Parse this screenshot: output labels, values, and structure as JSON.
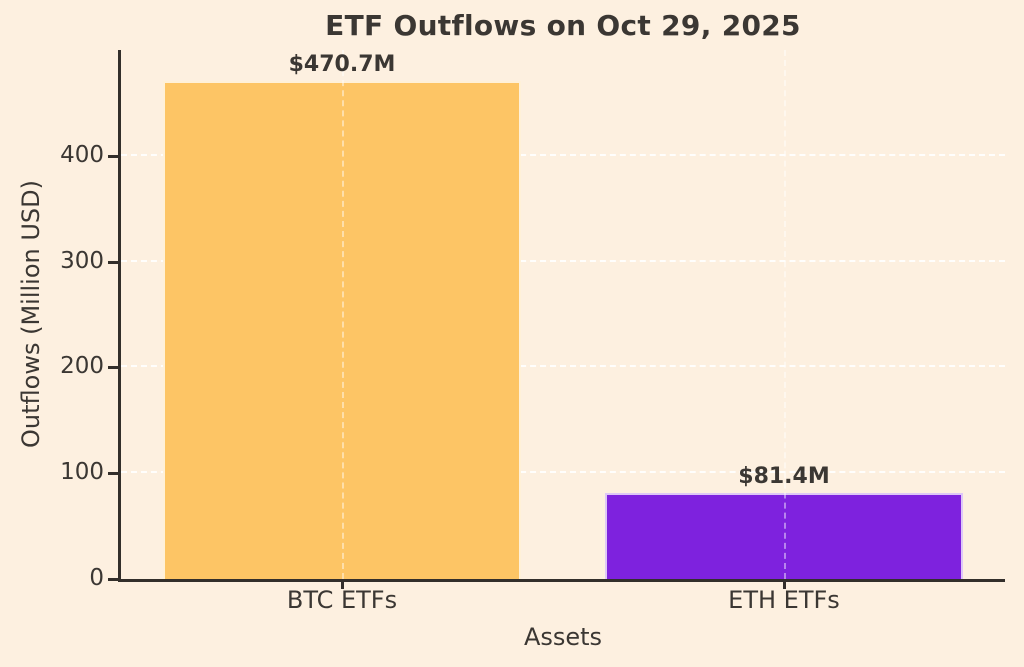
{
  "chart_data": {
    "type": "bar",
    "title": "ETF Outflows on Oct 29, 2025",
    "xlabel": "Assets",
    "ylabel": "Outflows (Million USD)",
    "categories": [
      "BTC ETFs",
      "ETH ETFs"
    ],
    "values": [
      470.7,
      81.4
    ],
    "bar_labels": [
      "$470.7M",
      "$81.4M"
    ],
    "bar_colors": [
      "#FDC565",
      "#7E22DE"
    ],
    "ylim": [
      0,
      500
    ],
    "yticks": [
      0,
      100,
      200,
      300,
      400
    ],
    "legend": "none",
    "grid": "dashed white, horizontal behind bars, vertical at category centers"
  },
  "colors": {
    "background": "#FDF0E0",
    "text": "#3B3733",
    "axis_spine": "#332F2B",
    "gridline": "#FFFFFF",
    "btc_bar": "#FDC565",
    "eth_bar": "#7E22DE"
  }
}
